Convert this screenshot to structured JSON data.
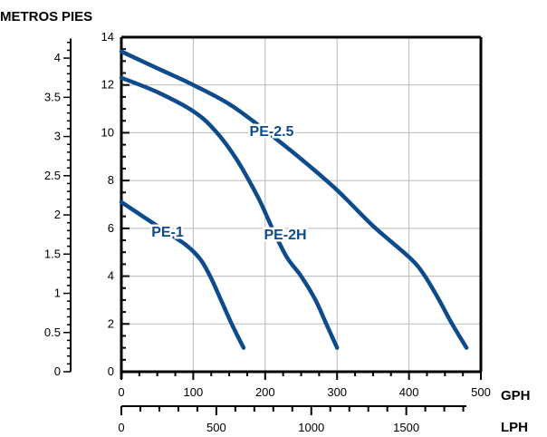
{
  "chart_data": {
    "type": "line",
    "title": "",
    "left_axis_labels": {
      "metros": "METROS",
      "pies": "PIES"
    },
    "bottom_units": {
      "gph": "GPH",
      "lph": "LPH"
    },
    "x_gph": {
      "range": [
        0,
        500
      ],
      "ticks": [
        "0",
        "100",
        "200",
        "300",
        "400",
        "500"
      ]
    },
    "x_lph": {
      "range": [
        0,
        1892.7
      ],
      "ticks": [
        "0",
        "500",
        "1000",
        "1500"
      ]
    },
    "y_pies": {
      "range": [
        0,
        14
      ],
      "ticks": [
        "0",
        "2",
        "4",
        "6",
        "8",
        "10",
        "12",
        "14"
      ]
    },
    "y_metros": {
      "range": [
        0,
        4.267
      ],
      "ticks": [
        "0",
        "0.5",
        "1",
        "1.5",
        "2",
        "2.5",
        "3",
        "3.5",
        "4"
      ]
    },
    "grid": true,
    "colors": {
      "line": "#0d4b8c",
      "grid": "#b8b8b8",
      "axis": "#000000"
    },
    "series": [
      {
        "name": "PE-1",
        "x": [
          0,
          30,
          60,
          90,
          110,
          125,
          140,
          155,
          170
        ],
        "y": [
          7.1,
          6.5,
          5.9,
          5.3,
          4.7,
          3.9,
          2.9,
          1.9,
          1.0
        ]
      },
      {
        "name": "PE-2H",
        "x": [
          0,
          50,
          100,
          130,
          160,
          190,
          210,
          230,
          250,
          270,
          285,
          300
        ],
        "y": [
          12.3,
          11.7,
          10.9,
          10.1,
          8.9,
          7.3,
          6.0,
          4.8,
          4.0,
          3.0,
          2.0,
          1.0
        ]
      },
      {
        "name": "PE-2.5",
        "x": [
          0,
          50,
          100,
          150,
          200,
          250,
          300,
          350,
          400,
          420,
          440,
          460,
          480
        ],
        "y": [
          13.4,
          12.7,
          12.0,
          11.2,
          10.1,
          8.9,
          7.6,
          6.1,
          4.8,
          4.1,
          3.1,
          2.0,
          1.0
        ]
      }
    ]
  }
}
